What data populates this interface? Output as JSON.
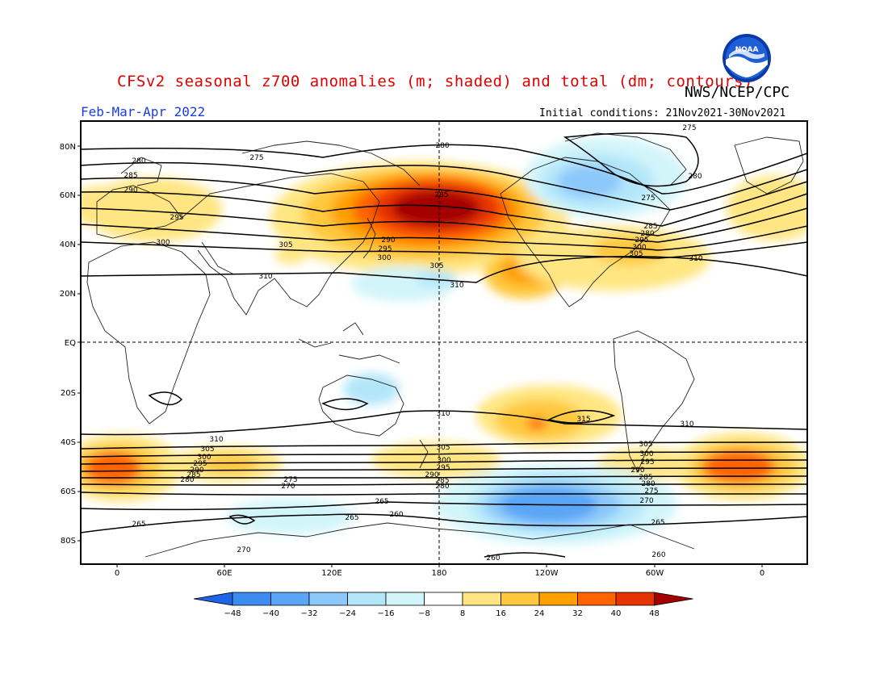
{
  "title": "CFSv2 seasonal z700 anomalies (m; shaded) and total (dm; contours)",
  "agency": "NWS/NCEP/CPC",
  "season": "Feb-Mar-Apr 2022",
  "initial_conditions": "Initial conditions: 21Nov2021-30Nov2021",
  "logo_text": "NOAA",
  "lat_labels": [
    "80N",
    "60N",
    "40N",
    "20N",
    "EQ",
    "20S",
    "40S",
    "60S",
    "80S"
  ],
  "lon_labels": [
    "0",
    "60E",
    "120E",
    "180",
    "120W",
    "60W",
    "0"
  ],
  "colorbar": {
    "ticks": [
      "-48",
      "-40",
      "-32",
      "-24",
      "-16",
      "-8",
      "8",
      "16",
      "24",
      "32",
      "40",
      "48"
    ],
    "colors": [
      "#1e64e6",
      "#3c8cf0",
      "#5aa5f5",
      "#8cc8fa",
      "#b4e6fa",
      "#d2f5fa",
      "#ffffff",
      "#ffe682",
      "#ffc83c",
      "#ffa000",
      "#ff6400",
      "#e63200",
      "#a50000"
    ]
  },
  "contour_labels": [
    "275",
    "280",
    "285",
    "290",
    "295",
    "300",
    "305",
    "310",
    "315",
    "270",
    "265",
    "260"
  ],
  "map_labels": {
    "nh_280": "280",
    "nh_275": "275",
    "nh_285": "285",
    "nh_290": "290",
    "nh_295": "295",
    "nh_300": "300",
    "nh_305": "305",
    "nh_310": "310",
    "pac_285": "285",
    "pac_290": "290",
    "pac_295": "295",
    "pac_300": "300",
    "pac_305": "305",
    "pac_310": "310",
    "na_275": "275",
    "na_280": "280",
    "na_285": "285",
    "na_290": "290",
    "na_295": "295",
    "na_300": "300",
    "na_305": "305",
    "na_310": "310",
    "top_275": "275",
    "top_280": "280",
    "gr_280": "280",
    "sh_310a": "310",
    "sh_310b": "310",
    "sh_310c": "310",
    "sh_315": "315",
    "sh_305a": "305",
    "sh_300a": "300",
    "sh_295a": "295",
    "sh_290a": "290",
    "sh_285a": "285",
    "sh_280a": "280",
    "sh_275a": "275",
    "sh_270a": "270",
    "sh_305b": "305",
    "sh_300b": "300",
    "sh_295b": "295",
    "sh_290b": "290",
    "sh_285b": "285",
    "sh_280b": "280",
    "sh_305c": "305",
    "sh_300c": "300",
    "sh_295c": "295",
    "sh_290c": "290",
    "sh_285c": "285",
    "sh_280c": "280",
    "sh_275c": "275",
    "sh_270c": "270",
    "sh_265a": "265",
    "sh_265b": "265",
    "sh_265c": "265",
    "sh_265d": "265",
    "sh_260a": "260",
    "sh_260b": "260",
    "sh_260c": "260",
    "sh_270d": "270"
  }
}
